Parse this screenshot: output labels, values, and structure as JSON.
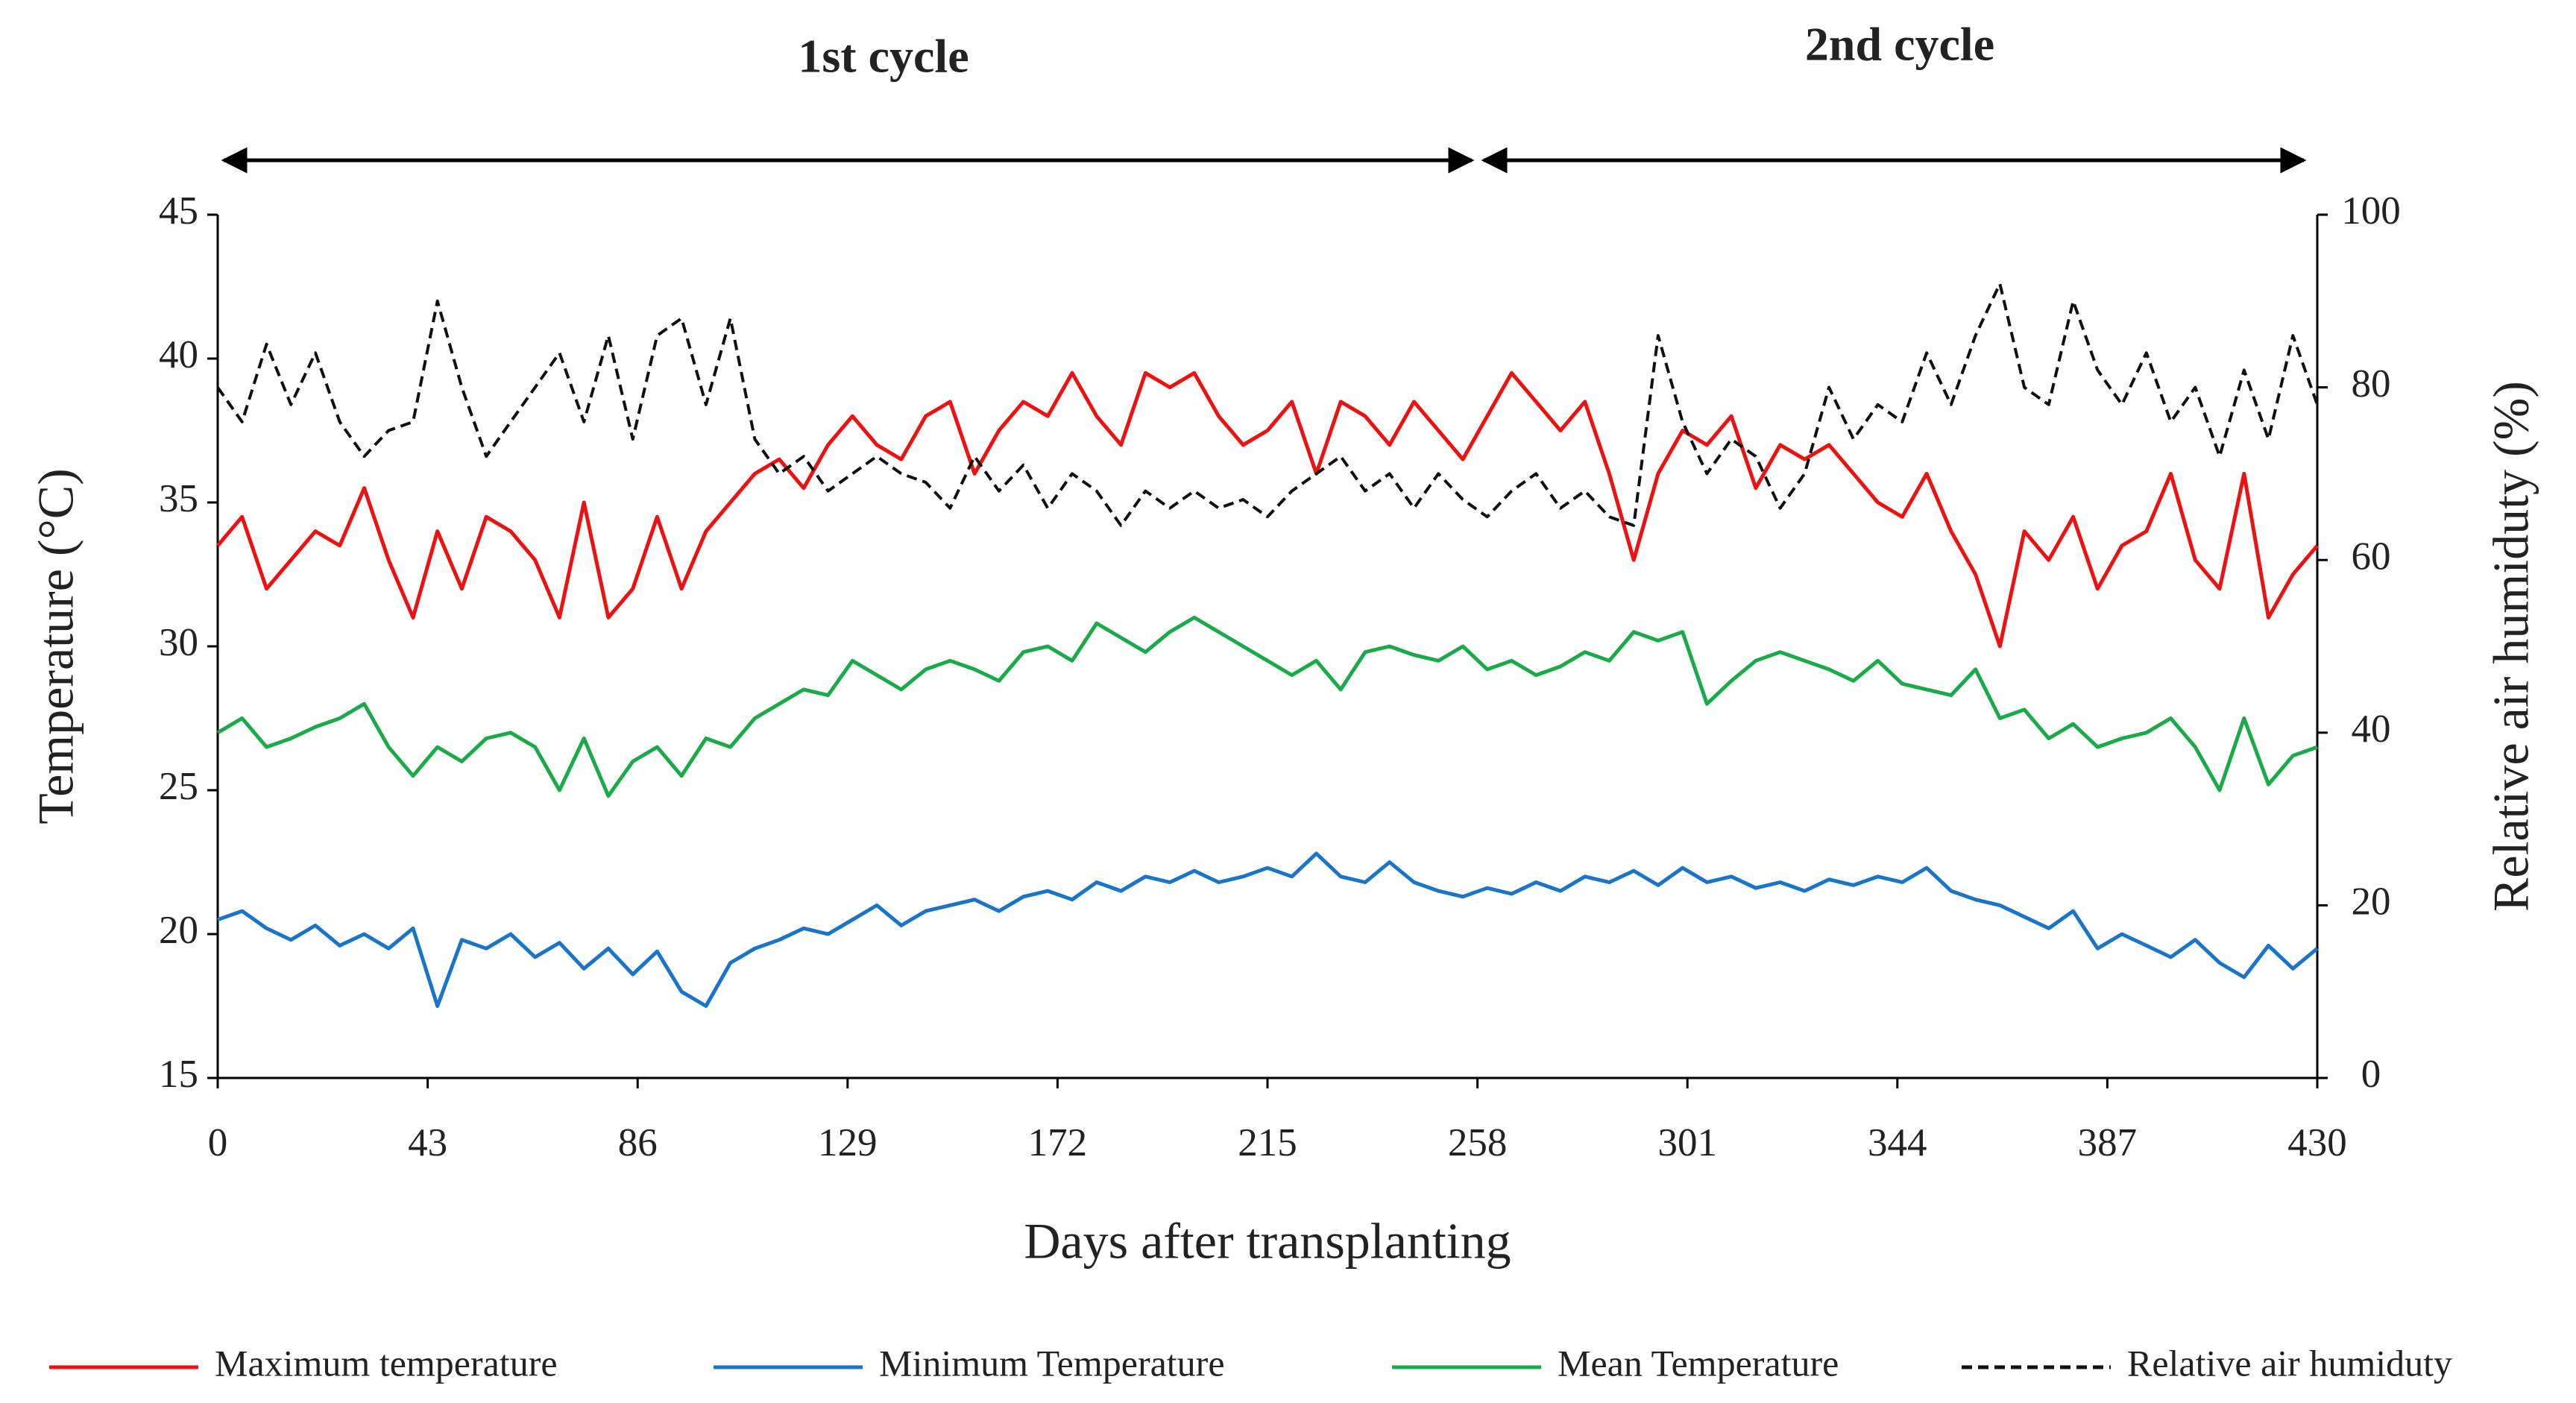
{
  "chart_data": {
    "type": "line",
    "annotations": [
      "1st cycle",
      "2nd cycle"
    ],
    "xlabel": "Days after transplanting",
    "ylabel": "Temperature (°C)",
    "y2label": "Relative air humiduty (%)",
    "xlim": [
      0,
      430
    ],
    "xticks": [
      0,
      43,
      86,
      129,
      172,
      215,
      258,
      301,
      344,
      387,
      430
    ],
    "ylim": [
      15,
      45
    ],
    "yticks": [
      15,
      20,
      25,
      30,
      35,
      40,
      45
    ],
    "y2lim": [
      0,
      100
    ],
    "y2ticks": [
      0,
      20,
      40,
      60,
      80,
      100
    ],
    "legend": "bottom",
    "x": [
      0,
      5,
      10,
      15,
      20,
      25,
      30,
      35,
      40,
      45,
      50,
      55,
      60,
      65,
      70,
      75,
      80,
      85,
      90,
      95,
      100,
      105,
      110,
      115,
      120,
      125,
      130,
      135,
      140,
      145,
      150,
      155,
      160,
      165,
      170,
      175,
      180,
      185,
      190,
      195,
      200,
      205,
      210,
      215,
      220,
      225,
      230,
      235,
      240,
      245,
      250,
      255,
      260,
      265,
      270,
      275,
      280,
      285,
      290,
      295,
      300,
      305,
      310,
      315,
      320,
      325,
      330,
      335,
      340,
      345,
      350,
      355,
      360,
      365,
      370,
      375,
      380,
      385,
      390,
      395,
      400,
      405,
      410,
      415,
      420,
      425,
      430
    ],
    "series": [
      {
        "name": "Maximum temperature",
        "color": "#ee1111",
        "style": "solid",
        "values": [
          33.5,
          34.5,
          32,
          33,
          34,
          33.5,
          35.5,
          33,
          31,
          34,
          32,
          34.5,
          34,
          33,
          31,
          35,
          31,
          32,
          34.5,
          32,
          34,
          35,
          36,
          36.5,
          35.5,
          37,
          38,
          37,
          36.5,
          38,
          38.5,
          36,
          37.5,
          38.5,
          38,
          39.5,
          38,
          37,
          39.5,
          39,
          39.5,
          38,
          37,
          37.5,
          38.5,
          36,
          38.5,
          38,
          37,
          38.5,
          37.5,
          36.5,
          38,
          39.5,
          38.5,
          37.5,
          38.5,
          36,
          33,
          36,
          37.5,
          37,
          38,
          35.5,
          37,
          36.5,
          37,
          36,
          35,
          34.5,
          36,
          34,
          32.5,
          30,
          34,
          33,
          34.5,
          32,
          33.5,
          34,
          36,
          33,
          32,
          36,
          31,
          32.5,
          33.5
        ]
      },
      {
        "name": "Minimum Temperature",
        "color": "#1a75c9",
        "style": "solid",
        "values": [
          20.5,
          20.8,
          20.2,
          19.8,
          20.3,
          19.6,
          20,
          19.5,
          20.2,
          17.5,
          19.8,
          19.5,
          20,
          19.2,
          19.7,
          18.8,
          19.5,
          18.6,
          19.4,
          18,
          17.5,
          19,
          19.5,
          19.8,
          20.2,
          20,
          20.5,
          21,
          20.3,
          20.8,
          21,
          21.2,
          20.8,
          21.3,
          21.5,
          21.2,
          21.8,
          21.5,
          22,
          21.8,
          22.2,
          21.8,
          22,
          22.3,
          22,
          22.8,
          22,
          21.8,
          22.5,
          21.8,
          21.5,
          21.3,
          21.6,
          21.4,
          21.8,
          21.5,
          22,
          21.8,
          22.2,
          21.7,
          22.3,
          21.8,
          22,
          21.6,
          21.8,
          21.5,
          21.9,
          21.7,
          22,
          21.8,
          22.3,
          21.5,
          21.2,
          21,
          20.6,
          20.2,
          20.8,
          19.5,
          20,
          19.6,
          19.2,
          19.8,
          19,
          18.5,
          19.6,
          18.8,
          19.5
        ]
      },
      {
        "name": "Mean Temperature",
        "color": "#1aaa4a",
        "style": "solid",
        "values": [
          27,
          27.5,
          26.5,
          26.8,
          27.2,
          27.5,
          28,
          26.5,
          25.5,
          26.5,
          26,
          26.8,
          27,
          26.5,
          25,
          26.8,
          24.8,
          26,
          26.5,
          25.5,
          26.8,
          26.5,
          27.5,
          28,
          28.5,
          28.3,
          29.5,
          29,
          28.5,
          29.2,
          29.5,
          29.2,
          28.8,
          29.8,
          30,
          29.5,
          30.8,
          30.3,
          29.8,
          30.5,
          31,
          30.5,
          30,
          29.5,
          29,
          29.5,
          28.5,
          29.8,
          30,
          29.7,
          29.5,
          30,
          29.2,
          29.5,
          29,
          29.3,
          29.8,
          29.5,
          30.5,
          30.2,
          30.5,
          28,
          28.8,
          29.5,
          29.8,
          29.5,
          29.2,
          28.8,
          29.5,
          28.7,
          28.5,
          28.3,
          29.2,
          27.5,
          27.8,
          26.8,
          27.3,
          26.5,
          26.8,
          27,
          27.5,
          26.5,
          25,
          27.5,
          25.2,
          26.2,
          26.5
        ]
      },
      {
        "name": "Relative air humiduty",
        "color": "#111111",
        "style": "dashed",
        "axis": "y2",
        "values": [
          80,
          76,
          85,
          78,
          84,
          76,
          72,
          75,
          76,
          90,
          80,
          72,
          76,
          80,
          84,
          76,
          86,
          74,
          86,
          88,
          78,
          88,
          74,
          70,
          72,
          68,
          70,
          72,
          70,
          69,
          66,
          72,
          68,
          71,
          66,
          70,
          68,
          64,
          68,
          66,
          68,
          66,
          67,
          65,
          68,
          70,
          72,
          68,
          70,
          66,
          70,
          67,
          65,
          68,
          70,
          66,
          68,
          65,
          64,
          86,
          76,
          70,
          74,
          72,
          66,
          70,
          80,
          74,
          78,
          76,
          84,
          78,
          86,
          92,
          80,
          78,
          90,
          82,
          78,
          84,
          76,
          80,
          72,
          82,
          74,
          86,
          78
        ]
      }
    ]
  }
}
